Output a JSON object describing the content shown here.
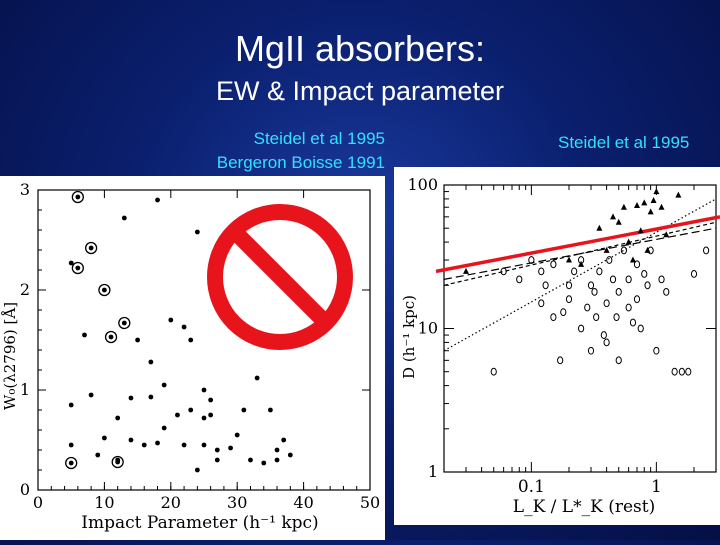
{
  "title": "MgII absorbers:",
  "subtitle": "EW & Impact parameter",
  "left_citations": [
    "Steidel et al 1995",
    "Bergeron Boisse 1991"
  ],
  "right_citation": "Steidel et al 1995",
  "prohibited_sign_color": "#e8141c",
  "fit_line_color": "#e8141c",
  "chart_data": [
    {
      "type": "scatter",
      "xlabel": "Impact Parameter  (h⁻¹ kpc)",
      "ylabel": "W₀(λ2796)  [Å]",
      "xlim": [
        0,
        50
      ],
      "ylim": [
        0,
        3
      ],
      "xticks": [
        "0",
        "10",
        "20",
        "30",
        "40",
        "50"
      ],
      "yticks": [
        "0",
        "1",
        "2",
        "3"
      ],
      "series": [
        {
          "marker": "filled-dot",
          "points": [
            [
              5,
              2.27
            ],
            [
              5,
              0.85
            ],
            [
              5,
              0.45
            ],
            [
              7,
              1.55
            ],
            [
              8,
              0.95
            ],
            [
              9,
              0.35
            ],
            [
              10,
              0.52
            ],
            [
              12,
              0.3
            ],
            [
              12,
              0.72
            ],
            [
              13,
              2.72
            ],
            [
              14,
              0.5
            ],
            [
              14,
              0.92
            ],
            [
              15,
              1.5
            ],
            [
              16,
              0.45
            ],
            [
              17,
              1.28
            ],
            [
              17,
              0.93
            ],
            [
              18,
              2.9
            ],
            [
              18,
              0.47
            ],
            [
              19,
              0.62
            ],
            [
              19,
              1.05
            ],
            [
              20,
              1.7
            ],
            [
              21,
              0.75
            ],
            [
              22,
              1.63
            ],
            [
              22,
              0.45
            ],
            [
              23,
              1.5
            ],
            [
              23,
              0.8
            ],
            [
              24,
              2.58
            ],
            [
              24,
              0.2
            ],
            [
              25,
              0.72
            ],
            [
              25,
              1.0
            ],
            [
              25,
              0.45
            ],
            [
              26,
              0.75
            ],
            [
              26,
              0.9
            ],
            [
              27,
              0.3
            ],
            [
              27,
              0.4
            ],
            [
              29,
              0.42
            ],
            [
              30,
              0.55
            ],
            [
              31,
              0.8
            ],
            [
              32,
              0.3
            ],
            [
              33,
              1.12
            ],
            [
              34,
              0.27
            ],
            [
              35,
              0.8
            ],
            [
              36,
              0.4
            ],
            [
              36,
              0.3
            ],
            [
              37,
              0.5
            ],
            [
              38,
              0.35
            ]
          ]
        },
        {
          "marker": "circled-dot",
          "points": [
            [
              6,
              2.93
            ],
            [
              6,
              2.22
            ],
            [
              8,
              2.42
            ],
            [
              10,
              2.0
            ],
            [
              11,
              1.53
            ],
            [
              13,
              1.67
            ],
            [
              12,
              0.28
            ],
            [
              5,
              0.27
            ]
          ]
        }
      ]
    },
    {
      "type": "scatter",
      "xlabel": "L_K / L*_K (rest)",
      "ylabel": "D  (h⁻¹ kpc)",
      "xscale": "log",
      "yscale": "log",
      "xlim": [
        0.02,
        3
      ],
      "ylim": [
        1,
        100
      ],
      "xtick_labels": [
        "0.1",
        "1"
      ],
      "ytick_labels": [
        "1",
        "10",
        "100"
      ],
      "series": [
        {
          "marker": "filled-triangle",
          "points": [
            [
              0.03,
              25
            ],
            [
              0.25,
              28
            ],
            [
              0.35,
              50
            ],
            [
              0.5,
              55
            ],
            [
              0.55,
              70
            ],
            [
              0.7,
              72
            ],
            [
              0.8,
              75
            ],
            [
              0.9,
              65
            ],
            [
              1.0,
              90
            ],
            [
              0.95,
              78
            ],
            [
              1.1,
              70
            ],
            [
              0.6,
              40
            ],
            [
              0.75,
              48
            ],
            [
              0.85,
              35
            ],
            [
              1.5,
              85
            ],
            [
              0.45,
              60
            ],
            [
              1.2,
              45
            ],
            [
              0.2,
              30
            ],
            [
              0.4,
              35
            ],
            [
              0.65,
              30
            ]
          ]
        },
        {
          "marker": "open-circle",
          "points": [
            [
              0.05,
              5
            ],
            [
              0.06,
              25
            ],
            [
              0.08,
              22
            ],
            [
              0.1,
              30
            ],
            [
              0.12,
              25
            ],
            [
              0.12,
              15
            ],
            [
              0.13,
              20
            ],
            [
              0.15,
              28
            ],
            [
              0.15,
              12
            ],
            [
              0.17,
              6
            ],
            [
              0.18,
              13
            ],
            [
              0.2,
              20
            ],
            [
              0.2,
              16
            ],
            [
              0.22,
              25
            ],
            [
              0.25,
              10
            ],
            [
              0.25,
              30
            ],
            [
              0.28,
              14
            ],
            [
              0.3,
              20
            ],
            [
              0.3,
              7
            ],
            [
              0.32,
              18
            ],
            [
              0.33,
              12
            ],
            [
              0.35,
              25
            ],
            [
              0.38,
              9
            ],
            [
              0.4,
              8
            ],
            [
              0.4,
              15
            ],
            [
              0.42,
              30
            ],
            [
              0.45,
              22
            ],
            [
              0.48,
              12
            ],
            [
              0.5,
              18
            ],
            [
              0.5,
              6
            ],
            [
              0.55,
              35
            ],
            [
              0.6,
              14
            ],
            [
              0.6,
              22
            ],
            [
              0.65,
              11
            ],
            [
              0.7,
              16
            ],
            [
              0.7,
              28
            ],
            [
              0.75,
              10
            ],
            [
              0.8,
              24
            ],
            [
              0.85,
              20
            ],
            [
              0.9,
              35
            ],
            [
              1.0,
              7
            ],
            [
              1.1,
              22
            ],
            [
              1.2,
              18
            ],
            [
              1.4,
              5
            ],
            [
              1.6,
              5
            ],
            [
              1.8,
              5
            ],
            [
              2.0,
              24
            ],
            [
              2.5,
              35
            ]
          ]
        }
      ],
      "lines": [
        {
          "style": "dashed",
          "from": [
            0.02,
            20
          ],
          "to": [
            3,
            55
          ]
        },
        {
          "style": "long-dashed",
          "from": [
            0.02,
            22
          ],
          "to": [
            3,
            50
          ]
        },
        {
          "style": "dotted",
          "from": [
            0.02,
            7
          ],
          "to": [
            3,
            80
          ]
        },
        {
          "style": "solid-red",
          "from": [
            0.02,
            25
          ],
          "to": [
            3,
            60
          ]
        }
      ]
    }
  ]
}
